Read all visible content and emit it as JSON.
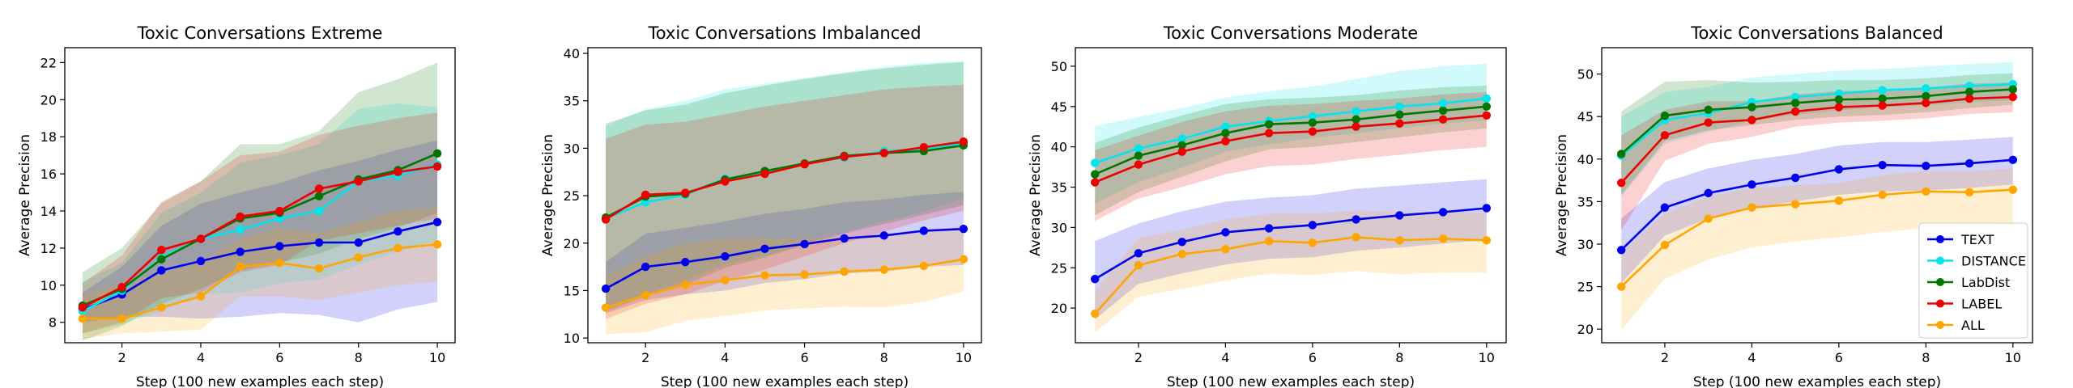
{
  "chart_data": [
    {
      "type": "line",
      "title": "Toxic Conversations Extreme",
      "xlabel": "Step (100 new examples each step)",
      "ylabel": "Average Precision",
      "ylim": [
        6.9,
        22.8
      ],
      "yticks": [
        8,
        10,
        12,
        14,
        16,
        18,
        20,
        22
      ],
      "xticks": [
        2,
        4,
        6,
        8,
        10
      ],
      "x": [
        1,
        2,
        3,
        4,
        5,
        6,
        7,
        8,
        9,
        10
      ],
      "series": [
        {
          "name": "TEXT",
          "color": "#0000ee",
          "values": [
            8.7,
            9.5,
            10.8,
            11.3,
            11.8,
            12.1,
            12.3,
            12.3,
            12.9,
            13.4
          ],
          "lower": [
            8.0,
            8.3,
            8.3,
            8.2,
            8.3,
            8.5,
            8.4,
            8.0,
            8.7,
            9.1
          ],
          "upper": [
            9.6,
            11.0,
            13.2,
            14.4,
            15.0,
            15.5,
            16.2,
            16.7,
            17.3,
            17.8
          ]
        },
        {
          "name": "DISTANCE",
          "color": "#00e5ee",
          "values": [
            8.6,
            9.7,
            11.5,
            12.5,
            13.0,
            13.6,
            14.0,
            15.6,
            15.9,
            16.5
          ],
          "lower": [
            7.4,
            7.9,
            8.6,
            9.5,
            9.6,
            10.1,
            10.3,
            11.1,
            11.8,
            12.4
          ],
          "upper": [
            10.2,
            11.2,
            13.9,
            15.0,
            16.6,
            17.0,
            17.6,
            19.5,
            19.8,
            19.6
          ]
        },
        {
          "name": "LabDist",
          "color": "#007700",
          "values": [
            8.9,
            9.8,
            11.4,
            12.5,
            13.6,
            13.9,
            14.8,
            15.7,
            16.2,
            17.1
          ],
          "lower": [
            7.0,
            7.8,
            9.0,
            9.8,
            10.8,
            11.2,
            11.7,
            12.5,
            13.1,
            13.9
          ],
          "upper": [
            10.7,
            12.0,
            14.4,
            15.6,
            17.6,
            17.6,
            18.3,
            20.4,
            21.1,
            22.0
          ]
        },
        {
          "name": "LABEL",
          "color": "#ee0000",
          "values": [
            8.8,
            9.9,
            11.9,
            12.5,
            13.7,
            14.0,
            15.2,
            15.6,
            16.1,
            16.4
          ],
          "lower": [
            7.4,
            8.0,
            9.3,
            9.6,
            10.7,
            11.1,
            12.4,
            12.8,
            13.2,
            13.6
          ],
          "upper": [
            10.1,
            11.6,
            14.5,
            15.6,
            17.0,
            17.2,
            18.1,
            18.6,
            19.0,
            19.3
          ]
        },
        {
          "name": "ALL",
          "color": "#ffa500",
          "values": [
            8.2,
            8.2,
            8.8,
            9.4,
            11.0,
            11.2,
            10.9,
            11.5,
            12.0,
            12.2
          ],
          "lower": [
            7.1,
            7.4,
            7.5,
            7.6,
            9.4,
            9.4,
            9.2,
            9.6,
            10.0,
            10.2
          ],
          "upper": [
            9.5,
            10.1,
            10.6,
            11.3,
            12.5,
            13.1,
            12.8,
            13.4,
            14.0,
            14.2
          ]
        }
      ]
    },
    {
      "type": "line",
      "title": "Toxic Conversations Imbalanced",
      "xlabel": "Step (100 new examples each step)",
      "ylabel": "Average Precision",
      "ylim": [
        9.5,
        40.6
      ],
      "yticks": [
        10,
        15,
        20,
        25,
        30,
        35,
        40
      ],
      "xticks": [
        2,
        4,
        6,
        8,
        10
      ],
      "x": [
        1,
        2,
        3,
        4,
        5,
        6,
        7,
        8,
        9,
        10
      ],
      "series": [
        {
          "name": "TEXT",
          "color": "#0000ee",
          "values": [
            15.2,
            17.5,
            18.0,
            18.6,
            19.4,
            19.9,
            20.5,
            20.8,
            21.3,
            21.5
          ],
          "lower": [
            12.6,
            14.0,
            14.6,
            15.0,
            15.8,
            16.2,
            16.8,
            17.0,
            17.5,
            17.7
          ],
          "upper": [
            18.0,
            21.0,
            21.6,
            22.3,
            23.1,
            23.6,
            24.3,
            24.6,
            25.1,
            25.4
          ]
        },
        {
          "name": "DISTANCE",
          "color": "#00e5ee",
          "values": [
            22.6,
            24.3,
            25.1,
            26.8,
            27.4,
            28.4,
            29.0,
            29.7,
            29.9,
            30.5
          ],
          "lower": [
            13.0,
            14.6,
            16.0,
            17.8,
            18.6,
            20.0,
            21.1,
            22.3,
            23.3,
            24.8
          ],
          "upper": [
            32.4,
            34.1,
            35.0,
            36.2,
            36.8,
            37.4,
            38.0,
            38.6,
            39.0,
            39.2
          ]
        },
        {
          "name": "LabDist",
          "color": "#007700",
          "values": [
            22.7,
            24.9,
            25.2,
            26.7,
            27.6,
            28.4,
            29.2,
            29.5,
            29.7,
            30.3
          ],
          "lower": [
            12.8,
            14.4,
            15.6,
            17.4,
            18.5,
            19.8,
            21.0,
            22.0,
            23.0,
            24.0
          ],
          "upper": [
            32.6,
            34.0,
            34.6,
            35.8,
            36.6,
            37.3,
            37.9,
            38.4,
            38.8,
            39.1
          ]
        },
        {
          "name": "LABEL",
          "color": "#ee0000",
          "values": [
            22.5,
            25.1,
            25.3,
            26.5,
            27.3,
            28.3,
            29.1,
            29.5,
            30.1,
            30.7
          ],
          "lower": [
            12.0,
            13.6,
            14.6,
            16.0,
            17.2,
            18.6,
            20.0,
            21.2,
            22.4,
            23.4
          ],
          "upper": [
            31.0,
            32.5,
            32.8,
            33.6,
            34.4,
            35.0,
            35.6,
            36.2,
            36.5,
            36.7
          ]
        },
        {
          "name": "ALL",
          "color": "#ffa500",
          "values": [
            13.2,
            14.5,
            15.6,
            16.1,
            16.6,
            16.7,
            17.0,
            17.2,
            17.6,
            18.3
          ],
          "lower": [
            10.4,
            10.6,
            11.8,
            12.3,
            12.9,
            13.1,
            13.3,
            13.2,
            13.8,
            14.9
          ],
          "upper": [
            16.5,
            18.6,
            20.0,
            20.5,
            20.5,
            20.5,
            20.7,
            21.0,
            21.4,
            21.8
          ]
        }
      ]
    },
    {
      "type": "line",
      "title": "Toxic Conversations Moderate",
      "xlabel": "Step (100 new examples each step)",
      "ylabel": "Average Precision",
      "ylim": [
        15.7,
        52.3
      ],
      "yticks": [
        20,
        25,
        30,
        35,
        40,
        45,
        50
      ],
      "xticks": [
        2,
        4,
        6,
        8,
        10
      ],
      "x": [
        1,
        2,
        3,
        4,
        5,
        6,
        7,
        8,
        9,
        10
      ],
      "series": [
        {
          "name": "TEXT",
          "color": "#0000ee",
          "values": [
            23.6,
            26.8,
            28.2,
            29.4,
            29.9,
            30.3,
            31.0,
            31.5,
            31.9,
            32.4
          ],
          "lower": [
            18.6,
            23.0,
            24.3,
            25.4,
            26.1,
            26.3,
            27.1,
            27.5,
            28.0,
            28.4
          ],
          "upper": [
            28.3,
            30.5,
            32.0,
            33.2,
            33.7,
            34.0,
            34.8,
            35.2,
            35.6,
            36.0
          ]
        },
        {
          "name": "DISTANCE",
          "color": "#00e5ee",
          "values": [
            38.0,
            39.8,
            41.0,
            42.5,
            43.2,
            43.8,
            44.4,
            45.0,
            45.4,
            46.0
          ],
          "lower": [
            33.0,
            35.6,
            37.4,
            39.4,
            40.3,
            41.1,
            41.7,
            42.3,
            42.9,
            43.3
          ],
          "upper": [
            42.6,
            43.7,
            44.8,
            46.1,
            46.9,
            47.5,
            48.4,
            49.4,
            50.0,
            50.3
          ]
        },
        {
          "name": "LabDist",
          "color": "#007700",
          "values": [
            36.6,
            38.9,
            40.2,
            41.7,
            42.8,
            43.0,
            43.4,
            44.0,
            44.5,
            45.0
          ],
          "lower": [
            31.5,
            34.4,
            36.3,
            38.2,
            39.7,
            40.0,
            40.6,
            41.2,
            41.8,
            42.3
          ],
          "upper": [
            40.5,
            42.4,
            43.9,
            45.3,
            45.9,
            46.1,
            46.4,
            47.0,
            47.4,
            47.6
          ]
        },
        {
          "name": "LABEL",
          "color": "#ee0000",
          "values": [
            35.6,
            37.8,
            39.4,
            40.7,
            41.7,
            41.9,
            42.5,
            42.9,
            43.4,
            43.9
          ],
          "lower": [
            30.8,
            33.6,
            35.0,
            36.6,
            37.6,
            37.8,
            38.5,
            39.0,
            39.6,
            40.0
          ],
          "upper": [
            39.6,
            41.4,
            43.1,
            44.4,
            45.1,
            45.3,
            45.7,
            46.0,
            46.5,
            46.8
          ]
        },
        {
          "name": "ALL",
          "color": "#ffa500",
          "values": [
            19.3,
            25.3,
            26.7,
            27.3,
            28.3,
            28.1,
            28.8,
            28.4,
            28.6,
            28.4
          ],
          "lower": [
            17.0,
            21.4,
            22.4,
            23.4,
            24.3,
            24.1,
            24.6,
            24.2,
            24.4,
            24.4
          ],
          "upper": [
            22.1,
            28.7,
            29.7,
            31.0,
            31.7,
            31.7,
            32.1,
            31.9,
            32.0,
            31.8
          ]
        }
      ]
    },
    {
      "type": "line",
      "title": "Toxic Conversations Balanced",
      "xlabel": "Step (100 new examples each step)",
      "ylabel": "Average Precision",
      "ylim": [
        18.4,
        53.1
      ],
      "yticks": [
        20,
        25,
        30,
        35,
        40,
        45,
        50
      ],
      "xticks": [
        2,
        4,
        6,
        8,
        10
      ],
      "x": [
        1,
        2,
        3,
        4,
        5,
        6,
        7,
        8,
        9,
        10
      ],
      "legend": "lower-right",
      "series": [
        {
          "name": "TEXT",
          "color": "#0000ee",
          "values": [
            29.3,
            34.3,
            36.0,
            37.0,
            37.8,
            38.8,
            39.3,
            39.2,
            39.5,
            39.9
          ],
          "lower": [
            25.4,
            31.0,
            33.0,
            34.2,
            35.0,
            35.8,
            36.2,
            36.3,
            36.6,
            37.0
          ],
          "upper": [
            33.0,
            37.3,
            38.9,
            39.9,
            40.6,
            41.6,
            42.0,
            42.0,
            42.3,
            42.6
          ]
        },
        {
          "name": "DISTANCE",
          "color": "#00e5ee",
          "values": [
            40.4,
            44.6,
            45.4,
            46.7,
            47.3,
            47.7,
            48.1,
            48.3,
            48.6,
            48.8
          ],
          "lower": [
            35.6,
            41.8,
            43.2,
            44.5,
            45.2,
            45.7,
            46.1,
            46.3,
            46.7,
            46.9
          ],
          "upper": [
            45.0,
            47.9,
            48.5,
            49.6,
            50.0,
            50.4,
            50.6,
            50.9,
            51.2,
            51.4
          ]
        },
        {
          "name": "LabDist",
          "color": "#007700",
          "values": [
            40.6,
            45.1,
            45.8,
            46.1,
            46.6,
            47.0,
            47.1,
            47.4,
            47.9,
            48.2
          ],
          "lower": [
            35.8,
            42.1,
            43.4,
            44.0,
            44.6,
            45.0,
            45.2,
            45.5,
            46.0,
            46.4
          ],
          "upper": [
            45.6,
            49.1,
            49.3,
            49.0,
            49.1,
            49.3,
            49.3,
            49.5,
            49.9,
            50.1
          ]
        },
        {
          "name": "LABEL",
          "color": "#ee0000",
          "values": [
            37.2,
            42.8,
            44.3,
            44.6,
            45.6,
            46.1,
            46.3,
            46.6,
            47.1,
            47.3
          ],
          "lower": [
            31.6,
            39.8,
            41.8,
            42.6,
            43.8,
            44.3,
            44.5,
            44.8,
            45.3,
            45.5
          ],
          "upper": [
            42.8,
            45.8,
            46.8,
            46.8,
            47.6,
            48.0,
            48.1,
            48.4,
            48.9,
            49.0
          ]
        },
        {
          "name": "ALL",
          "color": "#ffa500",
          "values": [
            25.0,
            29.9,
            33.0,
            34.3,
            34.7,
            35.1,
            35.8,
            36.2,
            36.1,
            36.4
          ],
          "lower": [
            19.9,
            25.9,
            28.2,
            29.6,
            30.3,
            30.8,
            31.4,
            31.9,
            32.0,
            32.3
          ],
          "upper": [
            29.0,
            33.6,
            35.6,
            36.6,
            36.9,
            37.2,
            38.1,
            38.6,
            38.6,
            38.9
          ]
        }
      ]
    }
  ]
}
